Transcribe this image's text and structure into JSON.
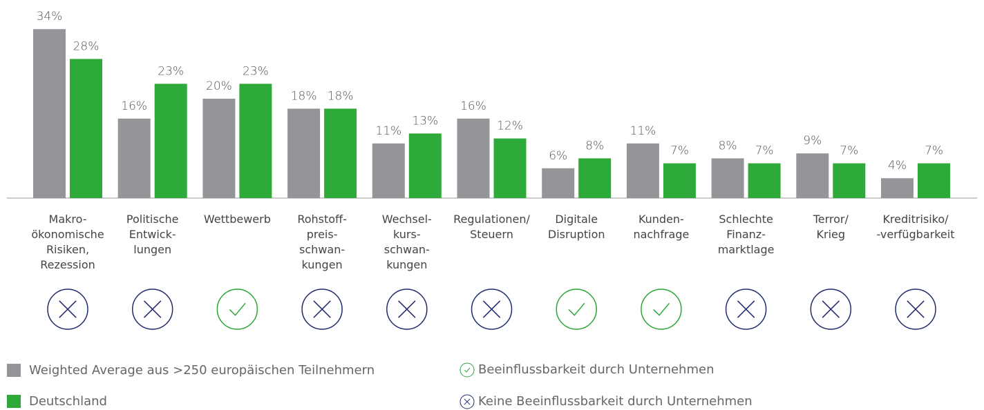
{
  "chart_data": {
    "type": "bar",
    "categories": [
      "Makro-\nökonomische\nRisiken,\nRezession",
      "Politische\nEntwick-\nlungen",
      "Wettbewerb",
      "Rohstoff-\npreis-\nschwan-\nkungen",
      "Wechsel-\nkurs-\nschwan-\nkungen",
      "Regulationen/\nSteuern",
      "Digitale\nDisruption",
      "Kunden-\nnachfrage",
      "Schlechte\nFinanz-\nmarktlage",
      "Terror/\nKrieg",
      "Kreditrisiko/\n-verfügbarkeit"
    ],
    "series": [
      {
        "name": "Weighted Average aus >250 europäischen Teilnehmern",
        "color": "#939598",
        "values": [
          34,
          16,
          20,
          18,
          11,
          16,
          6,
          11,
          8,
          9,
          4
        ],
        "value_labels": [
          "34%",
          "16%",
          "20%",
          "18%",
          "11%",
          "16%",
          "6%",
          "11%",
          "8%",
          "9%",
          "4%"
        ]
      },
      {
        "name": "Deutschland",
        "color": "#2eaa3a",
        "values": [
          28,
          23,
          23,
          18,
          13,
          12,
          8,
          7,
          7,
          7,
          7
        ],
        "value_labels": [
          "28%",
          "23%",
          "23%",
          "18%",
          "13%",
          "12%",
          "8%",
          "7%",
          "7%",
          "7%",
          "7%"
        ]
      }
    ],
    "influenceable": [
      false,
      false,
      true,
      false,
      false,
      false,
      true,
      true,
      false,
      false,
      false
    ],
    "influence_legend": {
      "yes": "Beeinflussbarkeit durch Unternehmen",
      "no": "Keine Beeinflussbarkeit durch Unternehmen"
    },
    "check_color": "#2aa637",
    "cross_color": "#1f2a6b"
  }
}
